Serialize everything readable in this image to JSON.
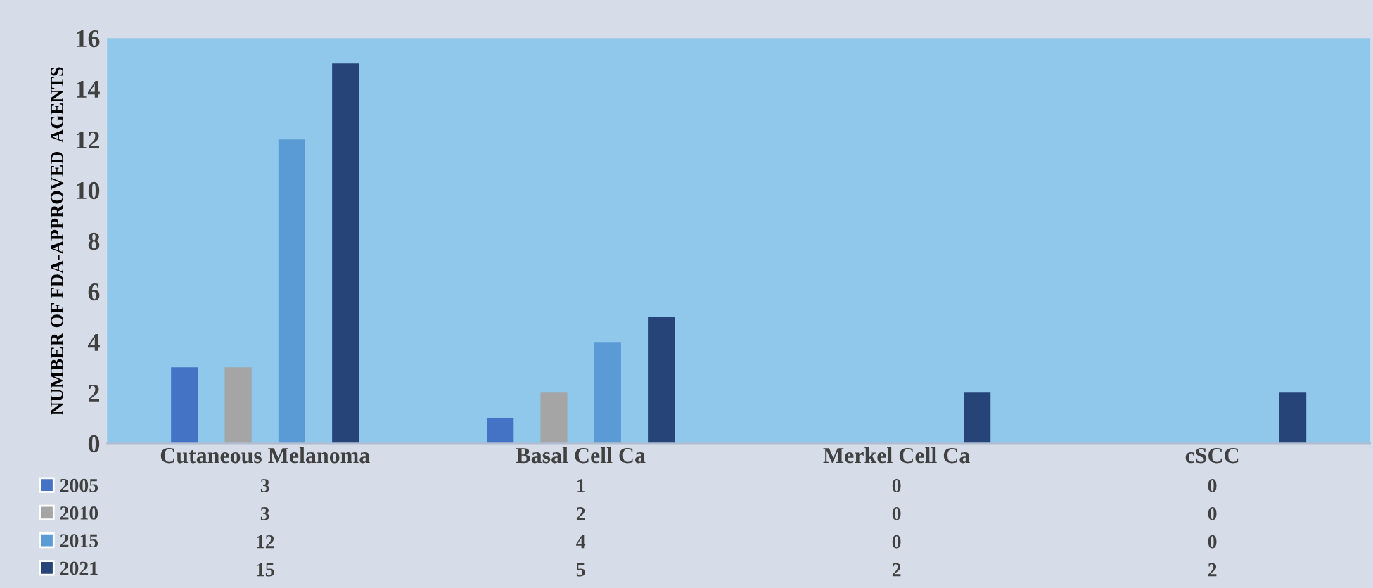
{
  "chart_data": {
    "type": "bar",
    "ylabel": "NUMBER OF FDA-APPROVED  AGENTS",
    "categories": [
      "Cutaneous Melanoma",
      "Basal Cell Ca",
      "Merkel Cell Ca",
      "cSCC"
    ],
    "series": [
      {
        "name": "2005",
        "color": "#4472c4",
        "values": [
          3,
          1,
          0,
          0
        ]
      },
      {
        "name": "2010",
        "color": "#a5a5a5",
        "values": [
          3,
          2,
          0,
          0
        ]
      },
      {
        "name": "2015",
        "color": "#5b9bd5",
        "values": [
          12,
          4,
          0,
          0
        ]
      },
      {
        "name": "2021",
        "color": "#264478",
        "values": [
          15,
          5,
          2,
          2
        ]
      }
    ],
    "ylim": [
      0,
      16
    ],
    "yticks": [
      0,
      2,
      4,
      6,
      8,
      10,
      12,
      14,
      16
    ],
    "data_labels": true,
    "legend": "bottom left",
    "grid": false
  }
}
